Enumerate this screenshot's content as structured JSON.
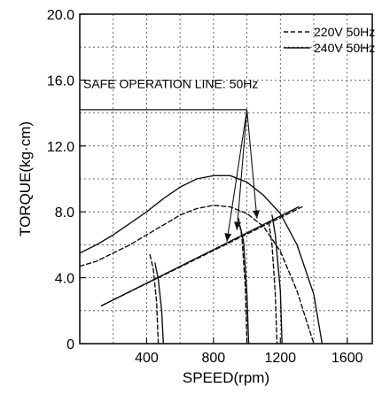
{
  "chart_data": {
    "type": "line",
    "xlabel": "SPEED(rpm)",
    "ylabel": "TORQUE(kg·cm)",
    "xlim": [
      0,
      1750
    ],
    "ylim": [
      0,
      20
    ],
    "x_ticks": [
      400,
      800,
      1200,
      1600
    ],
    "x_tick_labels": [
      "400",
      "800",
      "1200",
      "1600"
    ],
    "y_ticks": [
      0,
      4,
      8,
      12,
      16,
      20
    ],
    "y_tick_labels": [
      "0",
      "4.0",
      "8.0",
      "12.0",
      "16.0",
      "20.0"
    ],
    "grid": true,
    "legend_placement": "top-right",
    "legend": [
      {
        "label": "220V 50Hz",
        "style": "dashed"
      },
      {
        "label": "240V 50Hz",
        "style": "solid"
      }
    ],
    "annotation": {
      "text": "SAFE OPERATION LINE: 50Hz"
    },
    "series": [
      {
        "name": "220V 50Hz",
        "style": "dashed",
        "role": "torque curve",
        "points": [
          [
            0,
            4.7
          ],
          [
            100,
            5.0
          ],
          [
            200,
            5.5
          ],
          [
            300,
            6.0
          ],
          [
            400,
            6.6
          ],
          [
            500,
            7.2
          ],
          [
            600,
            7.8
          ],
          [
            700,
            8.2
          ],
          [
            800,
            8.4
          ],
          [
            900,
            8.3
          ],
          [
            1000,
            7.9
          ],
          [
            1100,
            7.1
          ],
          [
            1200,
            5.6
          ],
          [
            1300,
            3.2
          ],
          [
            1400,
            0
          ]
        ]
      },
      {
        "name": "240V 50Hz",
        "style": "solid",
        "role": "torque curve",
        "points": [
          [
            0,
            5.5
          ],
          [
            100,
            6.0
          ],
          [
            200,
            6.6
          ],
          [
            300,
            7.3
          ],
          [
            400,
            8.0
          ],
          [
            500,
            8.8
          ],
          [
            600,
            9.5
          ],
          [
            700,
            10.0
          ],
          [
            800,
            10.2
          ],
          [
            900,
            10.2
          ],
          [
            1000,
            9.8
          ],
          [
            1100,
            9.0
          ],
          [
            1200,
            7.9
          ],
          [
            1300,
            6.0
          ],
          [
            1400,
            3.0
          ],
          [
            1450,
            0
          ]
        ]
      },
      {
        "name": "220V 50Hz",
        "style": "dashed",
        "role": "safe operation line",
        "points": [
          [
            130,
            2.3
          ],
          [
            1330,
            8.3
          ]
        ]
      },
      {
        "name": "240V 50Hz",
        "style": "solid",
        "role": "safe operation line",
        "points": [
          [
            130,
            2.3
          ],
          [
            1310,
            8.3
          ]
        ]
      },
      {
        "name": "220V 50Hz",
        "style": "dashed",
        "role": "drop-off",
        "points": [
          [
            420,
            5.4
          ],
          [
            440,
            4.5
          ],
          [
            460,
            2.5
          ],
          [
            470,
            0
          ]
        ]
      },
      {
        "name": "240V 50Hz",
        "style": "solid",
        "role": "drop-off",
        "points": [
          [
            450,
            4.9
          ],
          [
            470,
            3.9
          ],
          [
            490,
            2.0
          ],
          [
            500,
            0
          ]
        ]
      },
      {
        "name": "220V 50Hz",
        "style": "dashed",
        "role": "drop-off",
        "points": [
          [
            950,
            7.6
          ],
          [
            970,
            6.5
          ],
          [
            990,
            3.5
          ],
          [
            1000,
            0
          ]
        ]
      },
      {
        "name": "240V 50Hz",
        "style": "solid",
        "role": "drop-off",
        "points": [
          [
            960,
            7.1
          ],
          [
            980,
            6.2
          ],
          [
            1000,
            3.0
          ],
          [
            1010,
            0
          ]
        ]
      },
      {
        "name": "220V 50Hz",
        "style": "dashed",
        "role": "drop-off",
        "points": [
          [
            1130,
            7.4
          ],
          [
            1150,
            6.0
          ],
          [
            1170,
            3.0
          ],
          [
            1180,
            0
          ]
        ]
      },
      {
        "name": "240V 50Hz",
        "style": "solid",
        "role": "drop-off",
        "points": [
          [
            1150,
            7.8
          ],
          [
            1170,
            6.6
          ],
          [
            1200,
            3.2
          ],
          [
            1210,
            0
          ]
        ]
      }
    ],
    "annotation_arrows": [
      {
        "tip": [
          880,
          6.2
        ]
      },
      {
        "tip": [
          940,
          6.9
        ]
      },
      {
        "tip": [
          1060,
          7.6
        ]
      }
    ],
    "annotation_anchor_point": [
      1000,
      14.2
    ]
  }
}
